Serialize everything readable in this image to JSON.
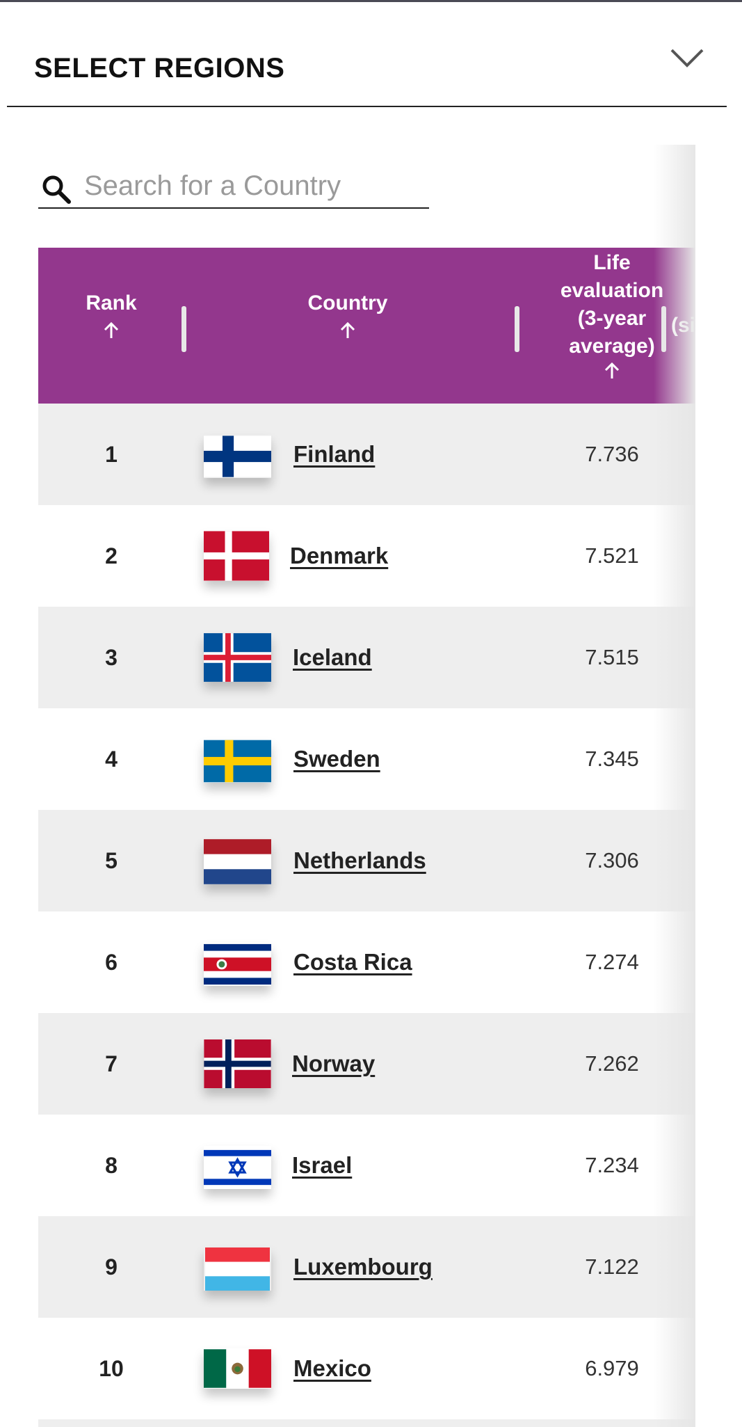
{
  "header": {
    "regions_label": "SELECT REGIONS"
  },
  "search": {
    "placeholder": "Search for a Country",
    "value": ""
  },
  "table": {
    "columns": [
      {
        "label": "Rank",
        "sort": "ascending"
      },
      {
        "label": "Country",
        "sort": "ascending"
      },
      {
        "label": "Life evaluation (3-year average)",
        "lines": [
          "Life",
          "evaluation",
          "(3-year",
          "average)"
        ],
        "sort": "ascending"
      },
      {
        "label": "(si",
        "truncated": true
      }
    ],
    "rows": [
      {
        "rank": "1",
        "country": "Finland",
        "value": "7.736",
        "flag": "finland-flag-icon"
      },
      {
        "rank": "2",
        "country": "Denmark",
        "value": "7.521",
        "flag": "denmark-flag-icon"
      },
      {
        "rank": "3",
        "country": "Iceland",
        "value": "7.515",
        "flag": "iceland-flag-icon"
      },
      {
        "rank": "4",
        "country": "Sweden",
        "value": "7.345",
        "flag": "sweden-flag-icon"
      },
      {
        "rank": "5",
        "country": "Netherlands",
        "value": "7.306",
        "flag": "netherlands-flag-icon"
      },
      {
        "rank": "6",
        "country": "Costa Rica",
        "value": "7.274",
        "flag": "costa-rica-flag-icon"
      },
      {
        "rank": "7",
        "country": "Norway",
        "value": "7.262",
        "flag": "norway-flag-icon"
      },
      {
        "rank": "8",
        "country": "Israel",
        "value": "7.234",
        "flag": "israel-flag-icon"
      },
      {
        "rank": "9",
        "country": "Luxembourg",
        "value": "7.122",
        "flag": "luxembourg-flag-icon"
      },
      {
        "rank": "10",
        "country": "Mexico",
        "value": "6.979",
        "flag": "mexico-flag-icon"
      }
    ]
  },
  "colors": {
    "header_bg": "#93378d",
    "row_alt_bg": "#eeeeee"
  }
}
